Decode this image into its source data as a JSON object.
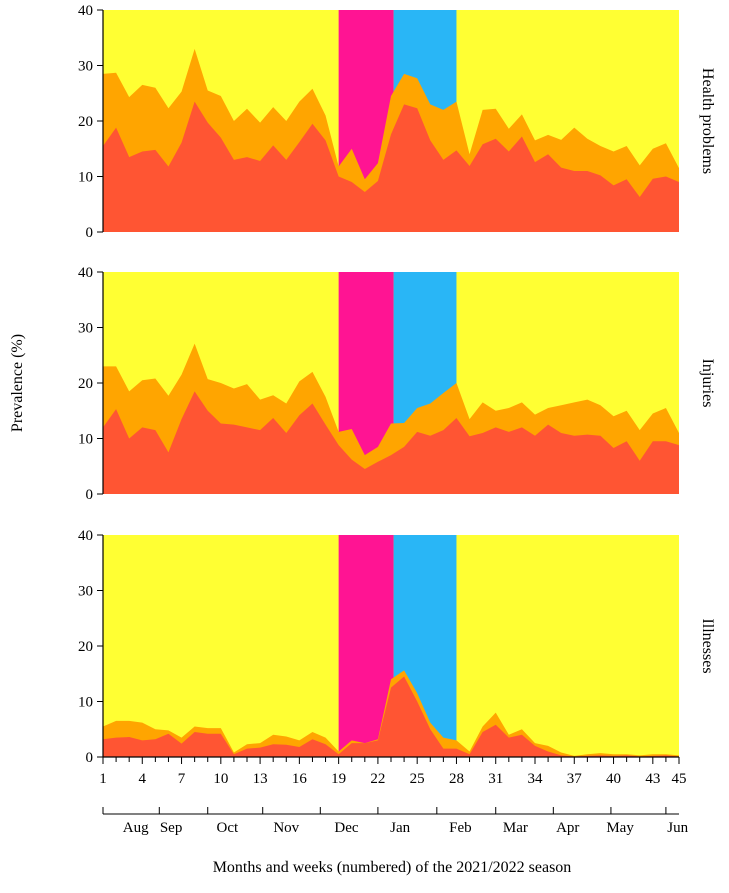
{
  "chart_data": {
    "type": "area",
    "ylabel": "Prevalence (%)",
    "xlabel": "Months and weeks (numbered) of the 2021/2022 season",
    "ylim": [
      0,
      40
    ],
    "yticks": [
      0,
      10,
      20,
      30,
      40
    ],
    "xlim": [
      1,
      45
    ],
    "xticks": [
      1,
      4,
      7,
      10,
      13,
      16,
      19,
      22,
      25,
      28,
      31,
      34,
      37,
      40,
      43,
      45
    ],
    "months": [
      {
        "label": "Aug",
        "week": 3.5
      },
      {
        "label": "Sep",
        "week": 6.2
      },
      {
        "label": "Oct",
        "week": 10.5
      },
      {
        "label": "Nov",
        "week": 15
      },
      {
        "label": "Dec",
        "week": 19.6
      },
      {
        "label": "Jan",
        "week": 23.7
      },
      {
        "label": "Feb",
        "week": 28.3
      },
      {
        "label": "Mar",
        "week": 32.5
      },
      {
        "label": "Apr",
        "week": 36.5
      },
      {
        "label": "May",
        "week": 40.5
      },
      {
        "label": "Jun",
        "week": 44.9
      }
    ],
    "shaded_periods": [
      {
        "name": "pink",
        "start": 19,
        "end": 23.2,
        "color": "#ff1493"
      },
      {
        "name": "blue",
        "start": 23.2,
        "end": 28,
        "color": "#29b6f6"
      }
    ],
    "colors": {
      "background": "#ffff33",
      "total": "#ffa500",
      "substantial": "#ff5533"
    },
    "panels": [
      {
        "title": "Health problems",
        "total": [
          28.5,
          28.7,
          24.3,
          26.5,
          26,
          22.3,
          25.3,
          33,
          25.5,
          24.5,
          20,
          22.2,
          19.7,
          22.5,
          20,
          23.5,
          25.8,
          21,
          11.8,
          15,
          9.5,
          12.4,
          24.5,
          28.5,
          27.7,
          23,
          22,
          23.5,
          14,
          22,
          22.2,
          18.6,
          21.2,
          16.5,
          17.5,
          16.6,
          18.8,
          16.8,
          15.5,
          14.5,
          15.5,
          12,
          15,
          16,
          11.5
        ],
        "substantial": [
          15.5,
          18.8,
          13.5,
          14.5,
          14.8,
          11.8,
          16.1,
          23.5,
          19.7,
          17,
          13,
          13.5,
          12.8,
          15.6,
          13,
          16.2,
          19.5,
          16.5,
          10,
          9,
          7.2,
          9.2,
          17.6,
          23,
          22.3,
          16.5,
          13,
          14.7,
          11.9,
          15.8,
          16.8,
          14.5,
          17.2,
          12.6,
          14,
          11.6,
          11,
          11,
          10.2,
          8.4,
          9.5,
          6.3,
          9.6,
          10,
          9
        ]
      },
      {
        "title": "Injuries",
        "total": [
          23,
          23,
          18.5,
          20.5,
          20.8,
          17.7,
          21.5,
          27.1,
          20.7,
          20,
          19,
          19.8,
          17,
          17.8,
          16.3,
          20.3,
          22,
          17.5,
          11.2,
          11.7,
          7,
          8.5,
          12.7,
          12.8,
          15.5,
          16.3,
          18.2,
          20,
          13.5,
          16.5,
          15,
          15.5,
          16.5,
          14.3,
          15.5,
          16,
          16.5,
          17,
          16,
          14,
          15,
          11.5,
          14.5,
          15.5,
          11
        ],
        "substantial": [
          12,
          15.3,
          10,
          12,
          11.5,
          7.5,
          13.5,
          18.5,
          15,
          12.7,
          12.5,
          12,
          11.5,
          13.7,
          11,
          14.2,
          16.3,
          12.5,
          8.8,
          6.2,
          4.5,
          5.8,
          7,
          8.5,
          11.2,
          10.5,
          11.5,
          13.7,
          10.4,
          11,
          12,
          11.2,
          12,
          10.5,
          12.5,
          11,
          10.5,
          10.7,
          10.5,
          8.3,
          9.5,
          6,
          9.5,
          9.5,
          8.8
        ]
      },
      {
        "title": "Illnesses",
        "total": [
          5.5,
          6.5,
          6.5,
          6.2,
          5,
          4.8,
          3.5,
          5.5,
          5.2,
          5.2,
          0.8,
          2.3,
          2.5,
          4,
          3.7,
          3,
          4.5,
          3.5,
          1,
          3,
          2.5,
          3.2,
          14,
          15.6,
          11.5,
          6.2,
          3.5,
          3,
          1,
          5.5,
          8,
          4,
          5,
          2.5,
          2,
          0.8,
          0.2,
          0.5,
          0.7,
          0.5,
          0.5,
          0.3,
          0.5,
          0.5,
          0.3
        ],
        "substantial": [
          3.2,
          3.5,
          3.6,
          3,
          3.2,
          4.2,
          2.4,
          4.5,
          4.2,
          4.2,
          0.5,
          1.5,
          1.7,
          2.3,
          2.2,
          1.8,
          3.2,
          2.3,
          0.5,
          2.5,
          2.5,
          3,
          12.5,
          14.5,
          10,
          5,
          1.5,
          1.5,
          0.5,
          4.5,
          5.8,
          3.5,
          4,
          2,
          1,
          0.3,
          0.1,
          0.2,
          0.3,
          0.2,
          0.3,
          0.1,
          0.2,
          0.3,
          0.1
        ]
      }
    ]
  }
}
